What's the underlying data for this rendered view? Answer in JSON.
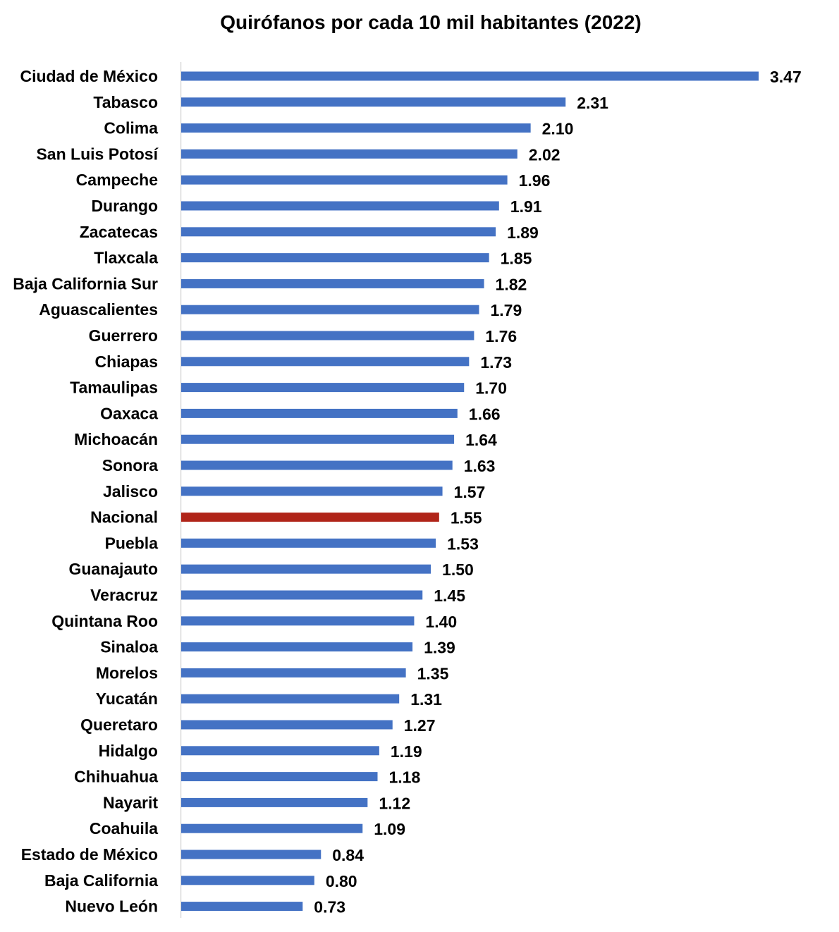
{
  "chart_data": {
    "type": "bar",
    "orientation": "horizontal",
    "title": "Quirófanos por cada 10 mil habitantes (2022)",
    "categories": [
      "Ciudad de México",
      "Tabasco",
      "Colima",
      "San Luis Potosí",
      "Campeche",
      "Durango",
      "Zacatecas",
      "Tlaxcala",
      "Baja California Sur",
      "Aguascalientes",
      "Guerrero",
      "Chiapas",
      "Tamaulipas",
      "Oaxaca",
      "Michoacán",
      "Sonora",
      "Jalisco",
      "Nacional",
      "Puebla",
      "Guanajauto",
      "Veracruz",
      "Quintana Roo",
      "Sinaloa",
      "Morelos",
      "Yucatán",
      "Queretaro",
      "Hidalgo",
      "Chihuahua",
      "Nayarit",
      "Coahuila",
      "Estado de México",
      "Baja California",
      "Nuevo León"
    ],
    "values": [
      3.47,
      2.31,
      2.1,
      2.02,
      1.96,
      1.91,
      1.89,
      1.85,
      1.82,
      1.79,
      1.76,
      1.73,
      1.7,
      1.66,
      1.64,
      1.63,
      1.57,
      1.55,
      1.53,
      1.5,
      1.45,
      1.4,
      1.39,
      1.35,
      1.31,
      1.27,
      1.19,
      1.18,
      1.12,
      1.09,
      0.84,
      0.8,
      0.73
    ],
    "value_labels": [
      "3.47",
      "2.31",
      "2.10",
      "2.02",
      "1.96",
      "1.91",
      "1.89",
      "1.85",
      "1.82",
      "1.79",
      "1.76",
      "1.73",
      "1.70",
      "1.66",
      "1.64",
      "1.63",
      "1.57",
      "1.55",
      "1.53",
      "1.50",
      "1.45",
      "1.40",
      "1.39",
      "1.35",
      "1.31",
      "1.27",
      "1.19",
      "1.18",
      "1.12",
      "1.09",
      "0.84",
      "0.80",
      "0.73"
    ],
    "highlight_category": "Nacional",
    "colors": {
      "bar": "#4472c4",
      "highlight": "#b02418",
      "axis": "#d9d9d9"
    },
    "grid": false,
    "legend": "none"
  }
}
